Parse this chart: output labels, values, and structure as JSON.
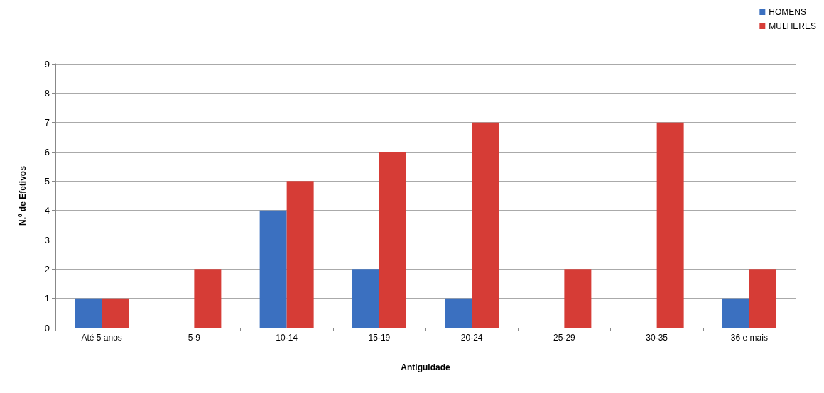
{
  "chart_data": {
    "type": "bar",
    "xlabel": "Antiguidade",
    "ylabel": "N.º de Efetivos",
    "categories": [
      "Até 5 anos",
      "5-9",
      "10-14",
      "15-19",
      "20-24",
      "25-29",
      "30-35",
      "36 e mais"
    ],
    "series": [
      {
        "name": "HOMENS",
        "color": "#3b70c0",
        "values": [
          1,
          0,
          4,
          2,
          1,
          0,
          0,
          1
        ]
      },
      {
        "name": "MULHERES",
        "color": "#d63c36",
        "values": [
          1,
          2,
          5,
          6,
          7,
          2,
          7,
          2
        ]
      }
    ],
    "ylim": [
      0,
      9
    ],
    "yticks": [
      0,
      1,
      2,
      3,
      4,
      5,
      6,
      7,
      8,
      9
    ],
    "grid": "y",
    "legend": "top right"
  }
}
